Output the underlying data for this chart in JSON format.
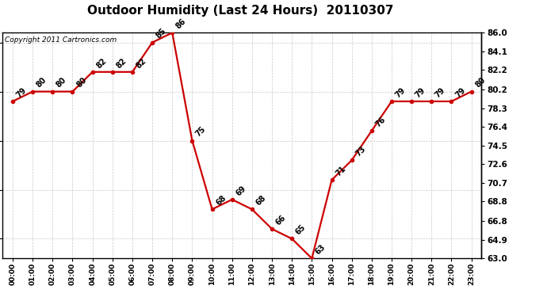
{
  "title": "Outdoor Humidity (Last 24 Hours)  20110307",
  "copyright": "Copyright 2011 Cartronics.com",
  "hours": [
    "00:00",
    "01:00",
    "02:00",
    "03:00",
    "04:00",
    "05:00",
    "06:00",
    "07:00",
    "08:00",
    "09:00",
    "10:00",
    "11:00",
    "12:00",
    "13:00",
    "14:00",
    "15:00",
    "16:00",
    "17:00",
    "18:00",
    "19:00",
    "20:00",
    "21:00",
    "22:00",
    "23:00"
  ],
  "values": [
    79,
    80,
    80,
    80,
    82,
    82,
    82,
    85,
    86,
    75,
    68,
    69,
    68,
    66,
    65,
    63,
    71,
    73,
    76,
    79,
    79,
    79,
    79,
    80
  ],
  "ymin": 63.0,
  "ymax": 86.0,
  "yticks_right": [
    86.0,
    84.1,
    82.2,
    80.2,
    78.3,
    76.4,
    74.5,
    72.6,
    70.7,
    68.8,
    66.8,
    64.9,
    63.0
  ],
  "line_color": "#cc0000",
  "marker_color": "#cc0000",
  "bg_color": "#ffffff",
  "grid_color": "#c8c8c8",
  "title_fontsize": 11,
  "annotation_fontsize": 7,
  "copyright_fontsize": 6.5,
  "xtick_fontsize": 6.5,
  "ytick_fontsize": 7.5
}
